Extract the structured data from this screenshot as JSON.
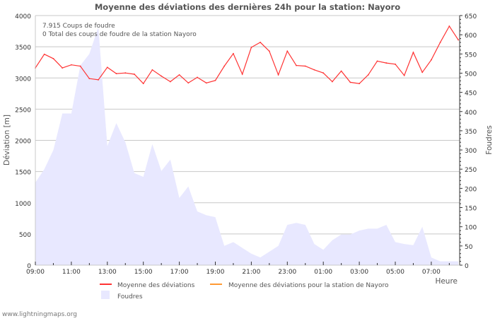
{
  "chart_data": {
    "type": "line",
    "title": "Moyenne des déviations des dernières 24h pour la station: Nayoro",
    "xlabel": "Heure",
    "ylabel": "Déviation  [m]",
    "y2label": "Foudres",
    "ylim": [
      0,
      4000
    ],
    "y2lim": [
      0,
      650
    ],
    "yticks": [
      "0",
      "500",
      "1000",
      "1500",
      "2000",
      "2500",
      "3000",
      "3500",
      "4000"
    ],
    "y2ticks": [
      "0",
      "50",
      "100",
      "150",
      "200",
      "250",
      "300",
      "350",
      "400",
      "450",
      "500",
      "550",
      "600",
      "650"
    ],
    "xticks": [
      "09:00",
      "11:00",
      "13:00",
      "15:00",
      "17:00",
      "19:00",
      "21:00",
      "23:00",
      "01:00",
      "03:00",
      "05:00",
      "07:00"
    ],
    "grid": true,
    "annotations": [
      "7.915  Coups de foudre",
      "0 Total des coups de foudre de la station Nayoro"
    ],
    "legend": [
      "Moyenne des déviations",
      "Moyenne des déviations pour la station de Nayoro",
      "Foudres"
    ],
    "legend_position": "bottom",
    "x_step_hours": 0.5,
    "series": [
      {
        "name": "Moyenne des déviations",
        "color": "#ff3333",
        "axis": "left",
        "values": [
          3160,
          3380,
          3310,
          3160,
          3210,
          3190,
          2990,
          2970,
          3170,
          3070,
          3080,
          3060,
          2910,
          3130,
          3030,
          2940,
          3050,
          2920,
          3010,
          2920,
          2960,
          3190,
          3390,
          3060,
          3490,
          3570,
          3430,
          3050,
          3430,
          3200,
          3190,
          3130,
          3080,
          2940,
          3110,
          2930,
          2910,
          3050,
          3270,
          3240,
          3220,
          3040,
          3410,
          3090,
          3290,
          3570,
          3830,
          3610
        ]
      },
      {
        "name": "Moyenne des déviations pour la station de Nayoro",
        "color": "#ff9933",
        "axis": "left",
        "values": []
      },
      {
        "name": "Foudres",
        "color": "#e8e8ff",
        "axis": "right",
        "type": "area",
        "values": [
          215,
          250,
          300,
          395,
          395,
          520,
          550,
          620,
          310,
          370,
          320,
          240,
          230,
          315,
          245,
          275,
          175,
          205,
          140,
          130,
          125,
          50,
          60,
          45,
          30,
          20,
          35,
          50,
          105,
          110,
          105,
          55,
          40,
          65,
          80,
          80,
          90,
          95,
          95,
          105,
          60,
          55,
          52,
          100,
          20,
          10,
          10,
          10
        ]
      }
    ]
  },
  "footer": "www.lightningmaps.org"
}
